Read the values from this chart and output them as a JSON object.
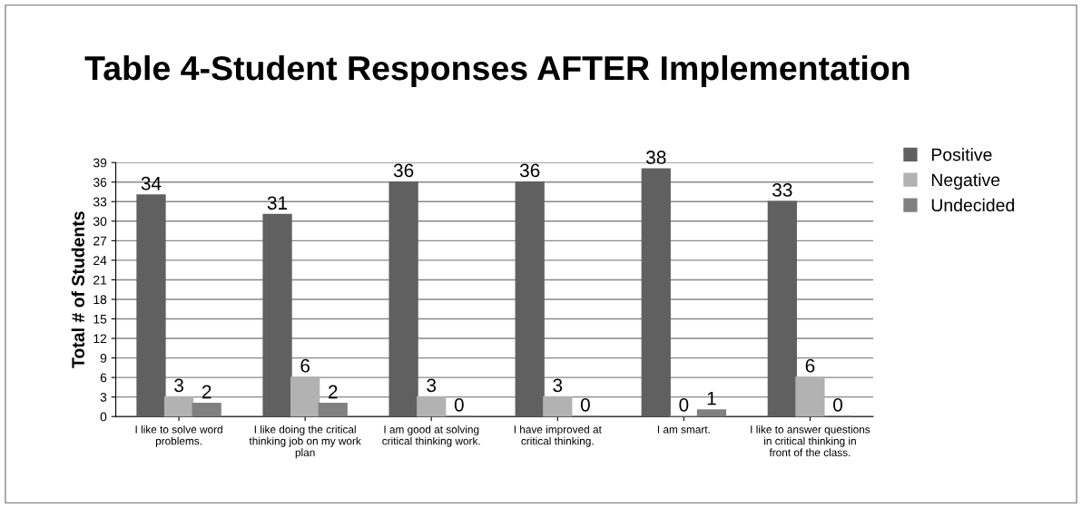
{
  "chart_data": {
    "type": "bar",
    "title": "Table 4-Student Responses AFTER Implementation",
    "ylabel": "Total # of Students",
    "categories": [
      "I like to solve word problems.",
      "I like doing the critical thinking job on my work plan",
      "I am good at solving critical thinking work.",
      "I have improved at critical thinking.",
      "I am smart.",
      "I like to answer questions in critical thinking in front of the class."
    ],
    "series": [
      {
        "name": "Positive",
        "color": "#606060",
        "values": [
          34,
          31,
          36,
          36,
          38,
          33
        ]
      },
      {
        "name": "Negative",
        "color": "#b2b2b2",
        "values": [
          3,
          6,
          3,
          3,
          0,
          6
        ]
      },
      {
        "name": "Undecided",
        "color": "#808080",
        "values": [
          2,
          2,
          0,
          0,
          1,
          0
        ]
      }
    ],
    "ylim": [
      0,
      39
    ],
    "yticks": [
      0,
      3,
      6,
      9,
      12,
      15,
      18,
      21,
      24,
      27,
      30,
      33,
      36,
      39
    ],
    "grid": "y",
    "legend": "right",
    "data_labels": true
  }
}
